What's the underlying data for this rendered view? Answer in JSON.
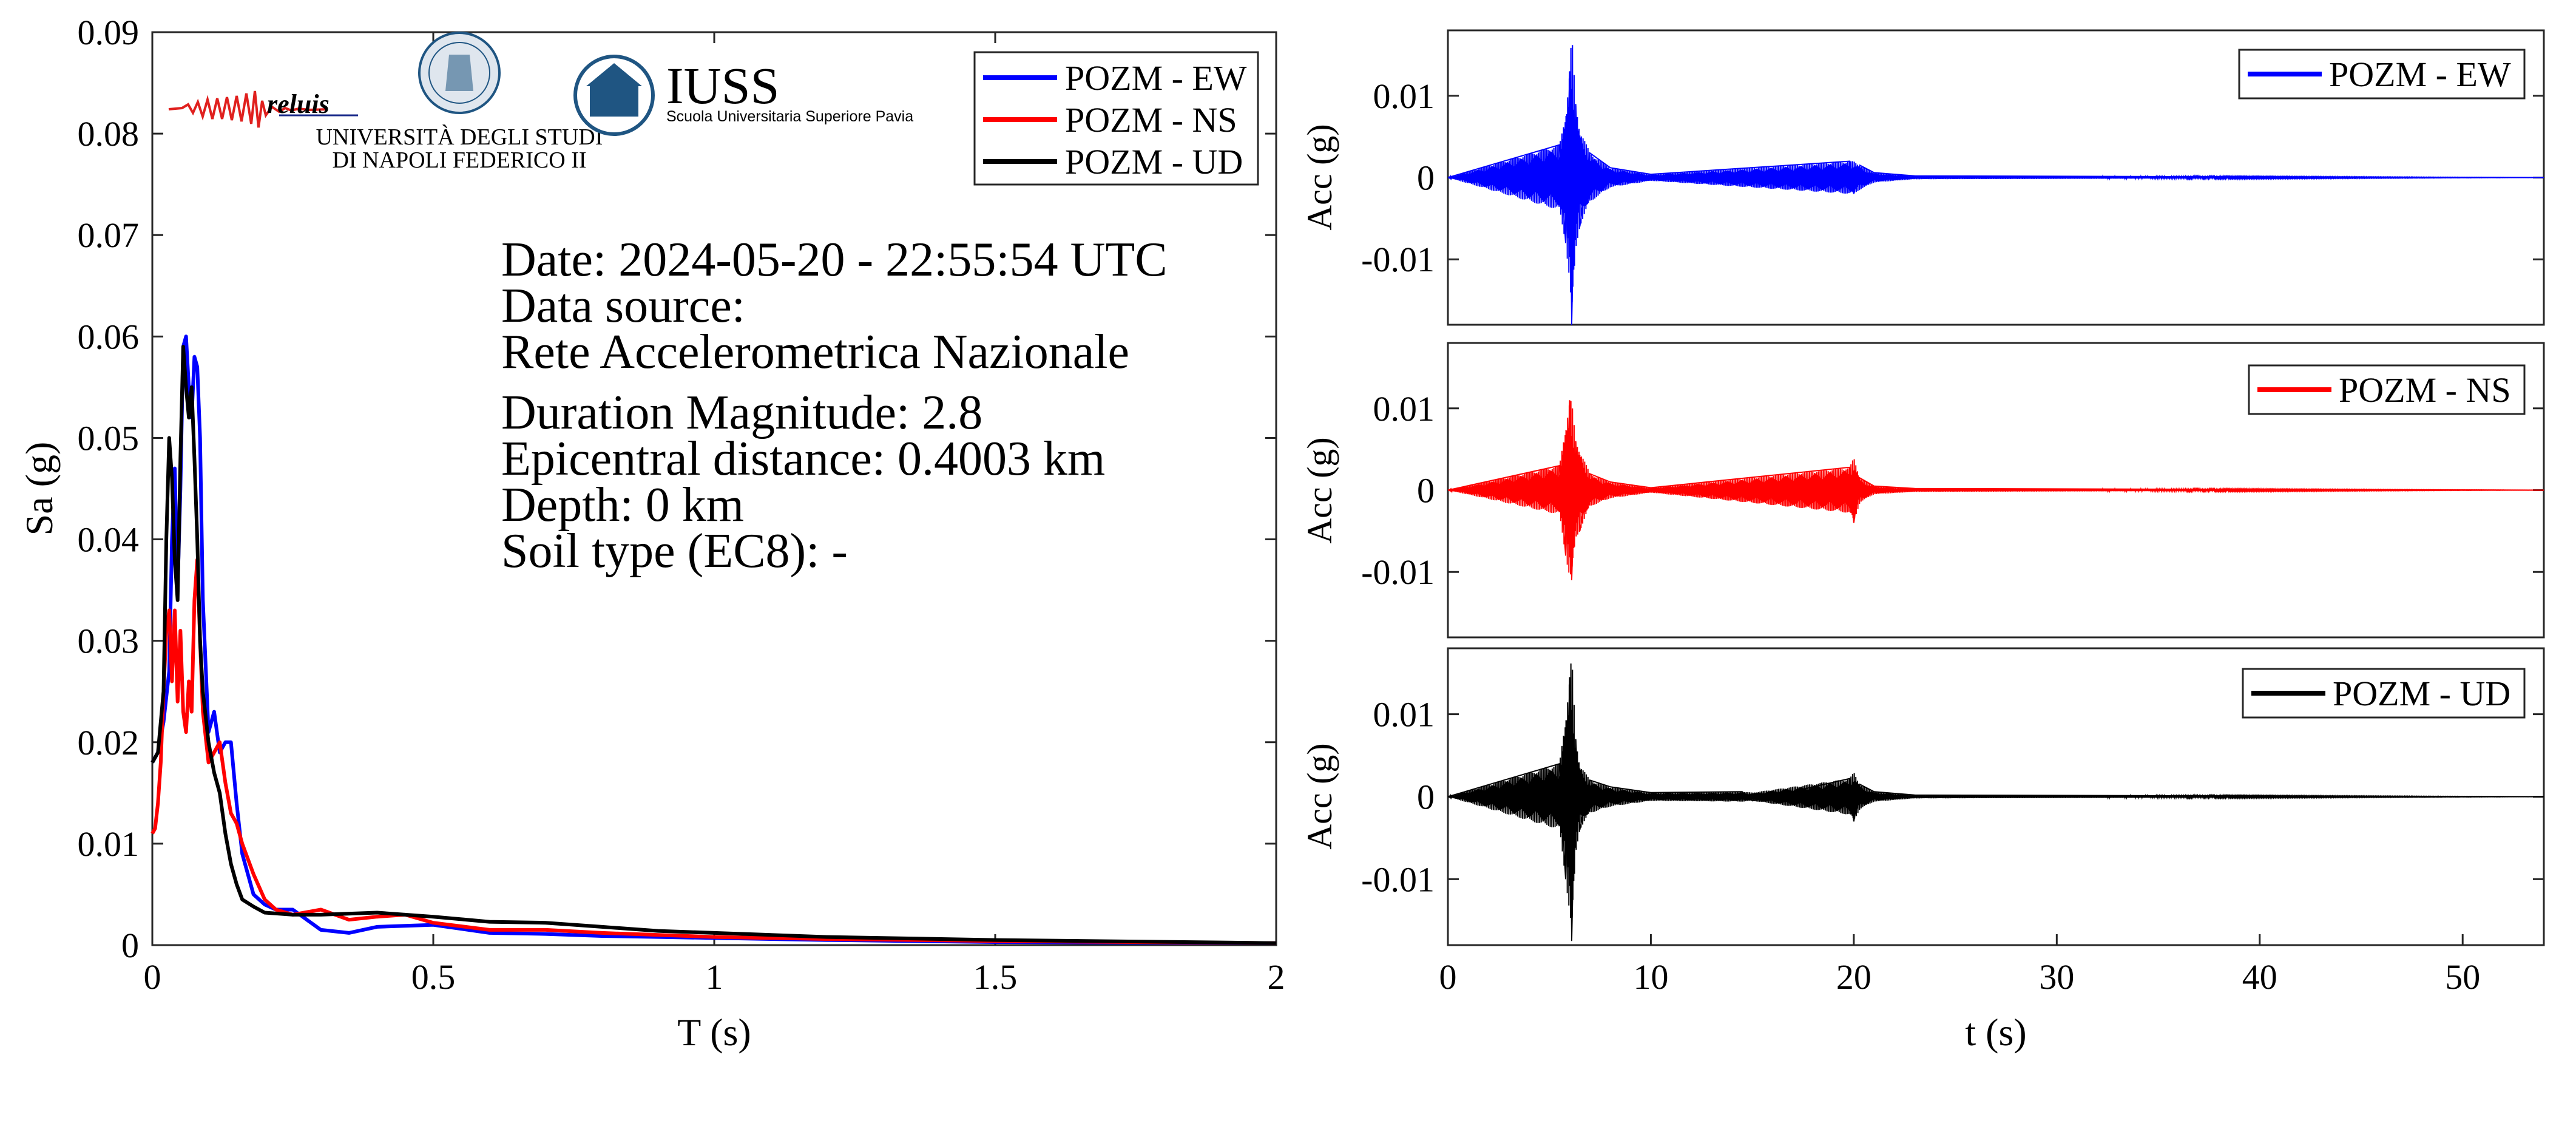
{
  "colors": {
    "ew": "#0000ff",
    "ns": "#ff0000",
    "ud": "#000000",
    "brand": "#1f5582",
    "reluis_text": "#1a2a8a"
  },
  "logos": {
    "reluis": "reluis",
    "unina_line1": "UNIVERSITÀ DEGLI STUDI",
    "unina_line2": "DI NAPOLI FEDERICO II",
    "iuss_title": "IUSS",
    "iuss_subtitle": "Scuola Universitaria Superiore Pavia"
  },
  "info": {
    "date": "Date: 2024-05-20 - 22:55:54 UTC",
    "source_label": "Data source:",
    "source": "Rete Accelerometrica Nazionale",
    "magnitude": "Duration Magnitude: 2.8",
    "distance": "Epicentral distance: 0.4003 km",
    "depth": "Depth: 0 km",
    "soil": "Soil type (EC8): -"
  },
  "chart_data": [
    {
      "type": "line",
      "xlabel": "T (s)",
      "ylabel": "Sa (g)",
      "xlim": [
        0,
        2
      ],
      "ylim": [
        0,
        0.09
      ],
      "xticks": [
        0,
        0.5,
        1,
        1.5,
        2
      ],
      "xtick_labels": [
        "0",
        "0.5",
        "1",
        "1.5",
        "2"
      ],
      "yticks": [
        0,
        0.01,
        0.02,
        0.03,
        0.04,
        0.05,
        0.06,
        0.07,
        0.08,
        0.09
      ],
      "ytick_labels": [
        "0",
        "0.01",
        "0.02",
        "0.03",
        "0.04",
        "0.05",
        "0.06",
        "0.07",
        "0.08",
        "0.09"
      ],
      "legend_position": "top-right",
      "grid": false,
      "series": [
        {
          "name": "POZM - EW",
          "color": "#0000ff",
          "x": [
            0,
            0.01,
            0.02,
            0.03,
            0.035,
            0.04,
            0.045,
            0.05,
            0.055,
            0.06,
            0.065,
            0.07,
            0.075,
            0.08,
            0.085,
            0.09,
            0.1,
            0.11,
            0.12,
            0.13,
            0.14,
            0.15,
            0.16,
            0.18,
            0.2,
            0.22,
            0.25,
            0.3,
            0.35,
            0.4,
            0.5,
            0.6,
            0.7,
            0.8,
            0.9,
            1.0,
            1.2,
            1.5,
            2.0
          ],
          "y": [
            0.018,
            0.019,
            0.022,
            0.027,
            0.04,
            0.047,
            0.035,
            0.045,
            0.059,
            0.06,
            0.055,
            0.052,
            0.058,
            0.057,
            0.05,
            0.034,
            0.021,
            0.023,
            0.019,
            0.02,
            0.02,
            0.014,
            0.009,
            0.005,
            0.004,
            0.0035,
            0.0035,
            0.0015,
            0.0012,
            0.0018,
            0.002,
            0.0012,
            0.0011,
            0.0009,
            0.0008,
            0.0007,
            0.0005,
            0.0003,
            0.0002
          ]
        },
        {
          "name": "POZM - NS",
          "color": "#ff0000",
          "x": [
            0,
            0.005,
            0.01,
            0.015,
            0.02,
            0.025,
            0.03,
            0.035,
            0.04,
            0.045,
            0.05,
            0.055,
            0.06,
            0.065,
            0.07,
            0.075,
            0.08,
            0.085,
            0.09,
            0.1,
            0.11,
            0.12,
            0.13,
            0.14,
            0.15,
            0.16,
            0.18,
            0.2,
            0.22,
            0.25,
            0.3,
            0.35,
            0.4,
            0.45,
            0.5,
            0.6,
            0.7,
            0.8,
            0.9,
            1.0,
            1.2,
            1.5,
            2.0
          ],
          "y": [
            0.011,
            0.0115,
            0.014,
            0.018,
            0.025,
            0.031,
            0.033,
            0.026,
            0.033,
            0.024,
            0.031,
            0.023,
            0.021,
            0.026,
            0.023,
            0.034,
            0.038,
            0.03,
            0.023,
            0.018,
            0.019,
            0.02,
            0.016,
            0.013,
            0.012,
            0.01,
            0.007,
            0.0045,
            0.0035,
            0.003,
            0.0035,
            0.0025,
            0.0028,
            0.003,
            0.0022,
            0.0015,
            0.0015,
            0.0012,
            0.001,
            0.0008,
            0.0006,
            0.0004,
            0.0002
          ]
        },
        {
          "name": "POZM - UD",
          "color": "#000000",
          "x": [
            0,
            0.01,
            0.02,
            0.025,
            0.03,
            0.035,
            0.04,
            0.045,
            0.05,
            0.055,
            0.06,
            0.065,
            0.07,
            0.075,
            0.08,
            0.085,
            0.09,
            0.1,
            0.11,
            0.12,
            0.13,
            0.14,
            0.15,
            0.16,
            0.18,
            0.2,
            0.25,
            0.3,
            0.4,
            0.5,
            0.6,
            0.7,
            0.8,
            0.9,
            1.0,
            1.2,
            1.5,
            2.0
          ],
          "y": [
            0.018,
            0.019,
            0.025,
            0.04,
            0.05,
            0.046,
            0.038,
            0.034,
            0.048,
            0.059,
            0.055,
            0.052,
            0.055,
            0.048,
            0.04,
            0.03,
            0.025,
            0.02,
            0.017,
            0.015,
            0.011,
            0.008,
            0.006,
            0.0045,
            0.0038,
            0.0032,
            0.003,
            0.003,
            0.0032,
            0.0028,
            0.0023,
            0.0022,
            0.0018,
            0.0014,
            0.0012,
            0.0008,
            0.0005,
            0.0002
          ]
        }
      ]
    },
    {
      "type": "line",
      "xlabel": "",
      "ylabel": "Acc (g)",
      "xlim": [
        0,
        54
      ],
      "ylim": [
        -0.018,
        0.018
      ],
      "yticks": [
        0.01,
        0,
        -0.01
      ],
      "ytick_labels": [
        "0.01",
        "0",
        "-0.01"
      ],
      "legend_position": "top-right",
      "series": [
        {
          "name": "POZM - EW",
          "color": "#0000ff",
          "x": [
            0,
            5.5,
            5.8,
            6.0,
            6.1,
            6.3,
            6.5,
            7.0,
            8.0,
            10.0,
            19.8,
            20.0,
            20.3,
            21.0,
            23.0,
            54
          ],
          "y": [
            0,
            0.004,
            -0.008,
            0.013,
            -0.018,
            0.009,
            -0.006,
            0.003,
            0.0012,
            0.0004,
            0.002,
            -0.002,
            0.0015,
            0.0006,
            0.0002,
            0
          ]
        }
      ]
    },
    {
      "type": "line",
      "xlabel": "",
      "ylabel": "Acc (g)",
      "xlim": [
        0,
        54
      ],
      "ylim": [
        -0.018,
        0.018
      ],
      "yticks": [
        0.01,
        0,
        -0.01
      ],
      "ytick_labels": [
        "0.01",
        "0",
        "-0.01"
      ],
      "legend_position": "top-right",
      "series": [
        {
          "name": "POZM - NS",
          "color": "#ff0000",
          "x": [
            0,
            5.5,
            5.8,
            6.0,
            6.1,
            6.3,
            6.5,
            7.0,
            8.0,
            10.0,
            19.8,
            20.0,
            20.3,
            21.0,
            23.0,
            54
          ],
          "y": [
            0,
            0.003,
            -0.008,
            0.011,
            -0.011,
            0.006,
            -0.005,
            0.002,
            0.001,
            0.0003,
            0.0028,
            -0.004,
            0.0015,
            0.0005,
            0.0002,
            0
          ]
        }
      ]
    },
    {
      "type": "line",
      "xlabel": "t (s)",
      "ylabel": "Acc (g)",
      "xlim": [
        0,
        54
      ],
      "ylim": [
        -0.018,
        0.018
      ],
      "xticks": [
        0,
        10,
        20,
        30,
        40,
        50
      ],
      "xtick_labels": [
        "0",
        "10",
        "20",
        "30",
        "40",
        "50"
      ],
      "yticks": [
        0.01,
        0,
        -0.01
      ],
      "ytick_labels": [
        "0.01",
        "0",
        "-0.01"
      ],
      "legend_position": "top-right",
      "series": [
        {
          "name": "POZM - UD",
          "color": "#000000",
          "x": [
            0,
            5.5,
            5.8,
            6.0,
            6.1,
            6.3,
            6.5,
            7.0,
            8.0,
            10.0,
            14.5,
            15.0,
            19.8,
            20.0,
            20.3,
            21.0,
            23.0,
            54
          ],
          "y": [
            0,
            0.004,
            -0.01,
            0.0145,
            -0.0175,
            0.007,
            -0.004,
            0.002,
            0.0012,
            0.0005,
            0.0006,
            -0.0005,
            0.0022,
            -0.003,
            0.0015,
            0.0006,
            0.0002,
            0
          ]
        }
      ]
    }
  ]
}
